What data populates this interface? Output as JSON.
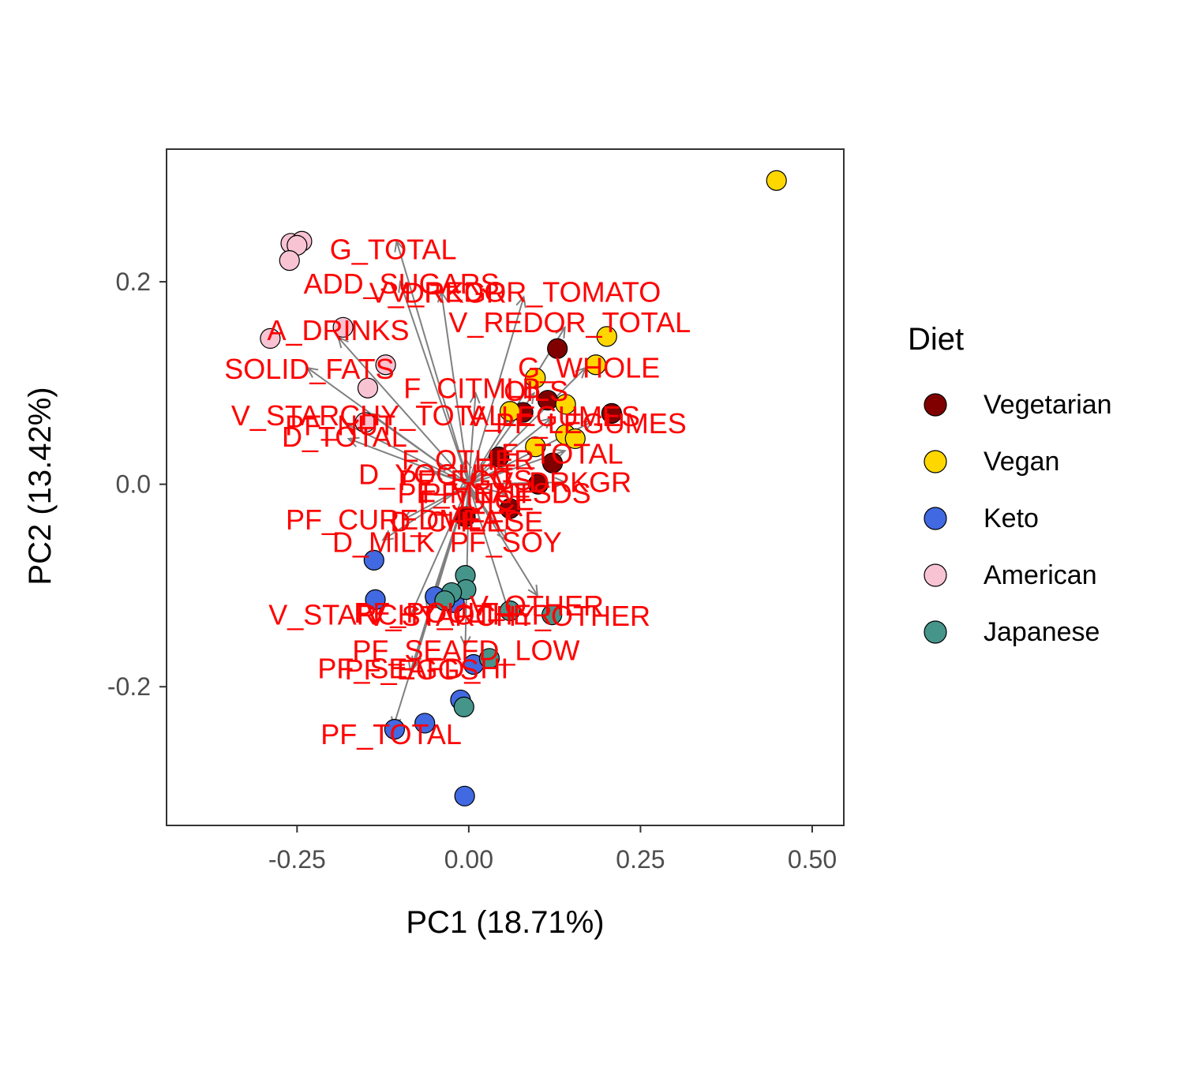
{
  "chart_data": {
    "type": "scatter",
    "title": "",
    "xlabel": "PC1 (18.71%)",
    "ylabel": "PC2 (13.42%)",
    "xlim": [
      -0.44,
      0.546
    ],
    "ylim": [
      -0.337,
      0.331
    ],
    "x_ticks": [
      -0.25,
      0.0,
      0.25,
      0.5
    ],
    "x_tick_labels": [
      "-0.25",
      "0.00",
      "0.25",
      "0.50"
    ],
    "y_ticks": [
      0.2,
      0.0,
      -0.2
    ],
    "y_tick_labels": [
      "0.2",
      "0.0",
      "-0.2"
    ],
    "grid": false,
    "legend": {
      "title": "Diet",
      "placement": "right",
      "items": [
        {
          "label": "Vegetarian",
          "color": "#800000"
        },
        {
          "label": "Vegan",
          "color": "#FFD700"
        },
        {
          "label": "Keto",
          "color": "#4169E1"
        },
        {
          "label": "American",
          "color": "#F8C3D3"
        },
        {
          "label": "Japanese",
          "color": "#45958A"
        }
      ]
    },
    "series": [
      {
        "name": "Vegetarian",
        "color": "#800000",
        "points": [
          {
            "x": 0.129,
            "y": 0.134
          },
          {
            "x": 0.115,
            "y": 0.083
          },
          {
            "x": 0.079,
            "y": 0.071
          },
          {
            "x": 0.208,
            "y": 0.07
          },
          {
            "x": 0.044,
            "y": 0.027
          },
          {
            "x": 0.122,
            "y": 0.021
          },
          {
            "x": 0.101,
            "y": 0.0
          },
          {
            "x": 0.06,
            "y": -0.024
          },
          {
            "x": -0.005,
            "y": -0.032
          }
        ]
      },
      {
        "name": "Vegan",
        "color": "#FFD700",
        "points": [
          {
            "x": 0.448,
            "y": 0.3
          },
          {
            "x": 0.201,
            "y": 0.146
          },
          {
            "x": 0.185,
            "y": 0.118
          },
          {
            "x": 0.097,
            "y": 0.105
          },
          {
            "x": 0.141,
            "y": 0.079
          },
          {
            "x": 0.06,
            "y": 0.072
          },
          {
            "x": 0.141,
            "y": 0.049
          },
          {
            "x": 0.155,
            "y": 0.045
          },
          {
            "x": 0.097,
            "y": 0.037
          }
        ]
      },
      {
        "name": "Keto",
        "color": "#4169E1",
        "points": [
          {
            "x": -0.138,
            "y": -0.075
          },
          {
            "x": -0.136,
            "y": -0.114
          },
          {
            "x": -0.049,
            "y": -0.111
          },
          {
            "x": -0.021,
            "y": -0.117
          },
          {
            "x": 0.007,
            "y": -0.178
          },
          {
            "x": -0.012,
            "y": -0.213
          },
          {
            "x": -0.108,
            "y": -0.242
          },
          {
            "x": -0.064,
            "y": -0.236
          },
          {
            "x": -0.006,
            "y": -0.308
          }
        ]
      },
      {
        "name": "American",
        "color": "#F8C3D3",
        "points": [
          {
            "x": -0.259,
            "y": 0.238
          },
          {
            "x": -0.243,
            "y": 0.24
          },
          {
            "x": -0.25,
            "y": 0.236
          },
          {
            "x": -0.261,
            "y": 0.221
          },
          {
            "x": -0.289,
            "y": 0.144
          },
          {
            "x": -0.183,
            "y": 0.155
          },
          {
            "x": -0.121,
            "y": 0.118
          },
          {
            "x": -0.147,
            "y": 0.095
          },
          {
            "x": -0.151,
            "y": 0.061
          }
        ]
      },
      {
        "name": "Japanese",
        "color": "#45958A",
        "points": [
          {
            "x": -0.005,
            "y": -0.09
          },
          {
            "x": -0.004,
            "y": -0.104
          },
          {
            "x": -0.025,
            "y": -0.107
          },
          {
            "x": -0.035,
            "y": -0.115
          },
          {
            "x": 0.06,
            "y": -0.125
          },
          {
            "x": 0.121,
            "y": -0.129
          },
          {
            "x": 0.03,
            "y": -0.172
          },
          {
            "x": -0.007,
            "y": -0.22
          }
        ]
      }
    ],
    "loadings": [
      {
        "label": "G_TOTAL",
        "x": -0.11,
        "y": 0.232,
        "dx": -0.105,
        "dy": 0.24
      },
      {
        "label": "ADD_SUGARS",
        "x": -0.098,
        "y": 0.198,
        "dx": -0.1,
        "dy": 0.2
      },
      {
        "label": "V_DRKGR",
        "x": -0.045,
        "y": 0.189,
        "dx": -0.04,
        "dy": 0.19
      },
      {
        "label": "V_REDOR_TOMATO",
        "x": 0.082,
        "y": 0.19,
        "dx": 0.08,
        "dy": 0.185
      },
      {
        "label": "V_REDOR_TOTAL",
        "x": 0.147,
        "y": 0.16,
        "dx": 0.14,
        "dy": 0.155
      },
      {
        "label": "A_DRINKS",
        "x": -0.19,
        "y": 0.152,
        "dx": -0.19,
        "dy": 0.145
      },
      {
        "label": "SOLID_FATS",
        "x": -0.232,
        "y": 0.114,
        "dx": -0.235,
        "dy": 0.115
      },
      {
        "label": "G_WHOLE",
        "x": 0.175,
        "y": 0.115,
        "dx": 0.17,
        "dy": 0.115
      },
      {
        "label": "V_STARCHY_TOTAL",
        "x": -0.147,
        "y": 0.068,
        "dx": -0.145,
        "dy": 0.07
      },
      {
        "label": "PF_NUT",
        "x": -0.187,
        "y": 0.058,
        "dx": -0.18,
        "dy": 0.06
      },
      {
        "label": "D_TOTAL",
        "x": -0.181,
        "y": 0.047,
        "dx": -0.175,
        "dy": 0.045
      },
      {
        "label": "F_CITMLB",
        "x": 0.005,
        "y": 0.095,
        "dx": 0.01,
        "dy": 0.09
      },
      {
        "label": "OILS",
        "x": 0.098,
        "y": 0.092,
        "dx": 0.095,
        "dy": 0.09
      },
      {
        "label": "PF_LEGUMES",
        "x": 0.178,
        "y": 0.06,
        "dx": 0.18,
        "dy": 0.062
      },
      {
        "label": "V_LEGUMES",
        "x": 0.123,
        "y": 0.067,
        "dx": 0.12,
        "dy": 0.065
      },
      {
        "label": "F_TOTAL",
        "x": 0.136,
        "y": 0.03,
        "dx": 0.14,
        "dy": 0.033
      },
      {
        "label": "F_OTHER",
        "x": -0.001,
        "y": 0.024,
        "dx": -0.005,
        "dy": 0.025
      },
      {
        "label": "D_YOGURT",
        "x": -0.046,
        "y": 0.01,
        "dx": -0.05,
        "dy": 0.012
      },
      {
        "label": "V_DRKGR",
        "x": 0.137,
        "y": 0.002,
        "dx": 0.14,
        "dy": 0.002
      },
      {
        "label": "PF_EGGS",
        "x": -0.005,
        "y": 0.004,
        "dx": -0.01,
        "dy": 0.003
      },
      {
        "label": "PF_MEAT",
        "x": -0.01,
        "y": -0.009,
        "dx": -0.015,
        "dy": -0.008
      },
      {
        "label": "PF_NUTSDS",
        "x": 0.055,
        "y": -0.009,
        "dx": 0.055,
        "dy": -0.01
      },
      {
        "label": "F_JUICE",
        "x": 0.011,
        "y": -0.016,
        "dx": 0.01,
        "dy": -0.015
      },
      {
        "label": "PF_CUREDMEAT",
        "x": -0.099,
        "y": -0.035,
        "dx": -0.095,
        "dy": -0.035
      },
      {
        "label": "D_CHEESE",
        "x": -0.003,
        "y": -0.037,
        "dx": -0.005,
        "dy": -0.035
      },
      {
        "label": "D_MILK",
        "x": -0.124,
        "y": -0.057,
        "dx": -0.125,
        "dy": -0.055
      },
      {
        "label": "PF_SOY",
        "x": 0.054,
        "y": -0.057,
        "dx": 0.055,
        "dy": -0.055
      },
      {
        "label": "V_OTHER",
        "x": 0.099,
        "y": -0.12,
        "dx": 0.1,
        "dy": -0.11
      },
      {
        "label": "PF_POULT",
        "x": -0.062,
        "y": -0.127,
        "dx": -0.06,
        "dy": -0.125
      },
      {
        "label": "V_STARCHY_OTHER",
        "x": -0.085,
        "y": -0.129,
        "dx": -0.085,
        "dy": -0.13
      },
      {
        "label": "V_STARCHY_OTHER",
        "x": 0.058,
        "y": -0.13,
        "dx": 0.06,
        "dy": -0.13
      },
      {
        "label": "PF_SEAFD_LOW",
        "x": -0.004,
        "y": -0.164,
        "dx": -0.005,
        "dy": -0.16
      },
      {
        "label": "PF_SEAFD_HI",
        "x": -0.081,
        "y": -0.182,
        "dx": -0.08,
        "dy": -0.18
      },
      {
        "label": "PF_EGGS",
        "x": -0.083,
        "y": -0.183,
        "dx": -0.085,
        "dy": -0.185
      },
      {
        "label": "PF_TOTAL",
        "x": -0.113,
        "y": -0.247,
        "dx": -0.11,
        "dy": -0.24
      }
    ]
  }
}
